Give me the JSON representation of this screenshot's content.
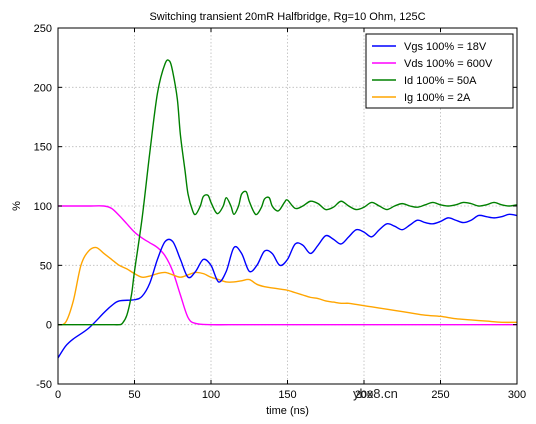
{
  "chart_data": {
    "type": "line",
    "title": "Switching transient 20mR Halfbridge, Rg=10 Ohm, 125C",
    "xlabel": "time (ns)",
    "ylabel": "%",
    "xlim": [
      0,
      300
    ],
    "ylim": [
      -50,
      250
    ],
    "x_ticks": [
      0,
      50,
      100,
      150,
      200,
      250,
      300
    ],
    "y_ticks": [
      -50,
      0,
      50,
      100,
      150,
      200,
      250
    ],
    "grid": true,
    "legend_position": "top-right",
    "series": [
      {
        "name": "Vgs 100% = 18V",
        "color": "#0000ff",
        "x": [
          0,
          5,
          10,
          20,
          30,
          35,
          40,
          50,
          55,
          60,
          65,
          70,
          75,
          80,
          85,
          90,
          95,
          100,
          105,
          110,
          115,
          120,
          125,
          130,
          135,
          140,
          145,
          150,
          155,
          160,
          165,
          170,
          175,
          180,
          185,
          190,
          195,
          200,
          205,
          210,
          215,
          220,
          225,
          230,
          235,
          240,
          245,
          250,
          255,
          260,
          265,
          270,
          275,
          280,
          285,
          290,
          295,
          300
        ],
        "y": [
          -28,
          -18,
          -12,
          -3,
          10,
          16,
          20,
          21,
          24,
          35,
          55,
          70,
          70,
          55,
          40,
          45,
          55,
          50,
          36,
          45,
          65,
          60,
          45,
          50,
          62,
          60,
          50,
          55,
          68,
          67,
          60,
          67,
          75,
          72,
          68,
          74,
          80,
          78,
          74,
          80,
          85,
          83,
          80,
          84,
          88,
          86,
          85,
          87,
          90,
          88,
          86,
          88,
          92,
          91,
          90,
          91,
          93,
          92
        ]
      },
      {
        "name": "Vds 100% = 600V",
        "color": "#ff00ff",
        "x": [
          0,
          10,
          20,
          30,
          35,
          40,
          45,
          50,
          55,
          60,
          65,
          70,
          75,
          80,
          85,
          90,
          100,
          120,
          150,
          200,
          250,
          300
        ],
        "y": [
          100,
          100,
          100,
          100,
          98,
          92,
          85,
          78,
          73,
          69,
          65,
          58,
          45,
          25,
          6,
          1,
          0,
          0,
          0,
          0,
          0,
          0
        ]
      },
      {
        "name": "Id 100% = 50A",
        "color": "#008000",
        "x": [
          0,
          10,
          20,
          30,
          35,
          40,
          42,
          45,
          48,
          50,
          55,
          60,
          65,
          70,
          73,
          75,
          78,
          80,
          83,
          85,
          88,
          90,
          93,
          95,
          98,
          100,
          103,
          105,
          108,
          110,
          113,
          115,
          118,
          120,
          123,
          125,
          128,
          130,
          133,
          135,
          138,
          140,
          143,
          145,
          148,
          150,
          155,
          160,
          165,
          170,
          175,
          180,
          185,
          190,
          195,
          200,
          205,
          210,
          215,
          220,
          225,
          230,
          235,
          240,
          245,
          250,
          255,
          260,
          265,
          270,
          275,
          280,
          285,
          290,
          295,
          300
        ],
        "y": [
          0,
          0,
          0,
          0,
          0,
          0,
          1,
          8,
          25,
          45,
          90,
          145,
          195,
          220,
          222,
          213,
          190,
          160,
          130,
          110,
          96,
          93,
          100,
          108,
          109,
          103,
          95,
          94,
          100,
          107,
          100,
          93,
          100,
          110,
          112,
          104,
          95,
          93,
          99,
          106,
          107,
          100,
          96,
          97,
          103,
          105,
          98,
          100,
          104,
          102,
          97,
          99,
          104,
          100,
          97,
          99,
          103,
          100,
          97,
          100,
          102,
          100,
          99,
          101,
          103,
          101,
          100,
          101,
          103,
          102,
          100,
          101,
          103,
          101,
          100,
          101
        ]
      },
      {
        "name": "Ig 100% = 2A",
        "color": "#ffa500",
        "x": [
          0,
          5,
          10,
          15,
          20,
          25,
          30,
          35,
          40,
          45,
          50,
          55,
          60,
          65,
          70,
          75,
          80,
          85,
          90,
          95,
          100,
          105,
          110,
          115,
          120,
          125,
          130,
          135,
          140,
          145,
          150,
          155,
          160,
          165,
          170,
          175,
          180,
          185,
          190,
          195,
          200,
          205,
          210,
          220,
          230,
          240,
          250,
          260,
          270,
          280,
          290,
          300
        ],
        "y": [
          0,
          2,
          20,
          50,
          62,
          65,
          60,
          55,
          50,
          47,
          43,
          40,
          41,
          43,
          44,
          42,
          40,
          42,
          44,
          43,
          40,
          38,
          36,
          36,
          37,
          38,
          34,
          32,
          31,
          30,
          29,
          27,
          25,
          23,
          22,
          20,
          19,
          18,
          18,
          17,
          16,
          15,
          14,
          12,
          10,
          8,
          7,
          5,
          4,
          3,
          2,
          2
        ]
      }
    ]
  },
  "watermark": {
    "text": "ybx8.cn"
  }
}
